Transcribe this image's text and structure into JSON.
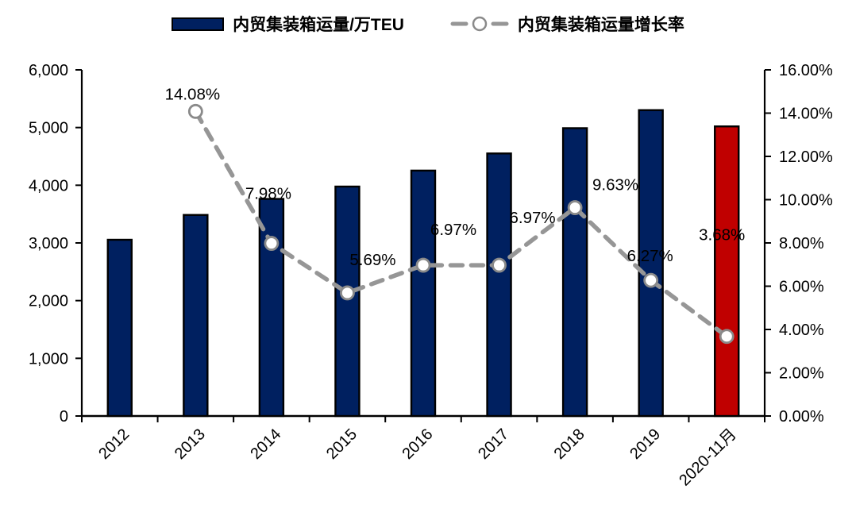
{
  "legend": {
    "bar_label": "内贸集装箱运量/万TEU",
    "line_label": "内贸集装箱运量增长率"
  },
  "colors": {
    "bar": "#002060",
    "bar_highlight": "#C00000",
    "bar_border": "#000000",
    "line": "#969696",
    "marker_stroke": "#8A8A8A",
    "marker_fill": "#FFFFFF",
    "axis": "#000000",
    "text": "#000000"
  },
  "chart_data": {
    "type": "bar+line combo",
    "title": "",
    "categories": [
      "2012",
      "2013",
      "2014",
      "2015",
      "2016",
      "2017",
      "2018",
      "2019",
      "2020-11月"
    ],
    "series": [
      {
        "name": "内贸集装箱运量/万TEU",
        "type": "bar",
        "axis": "left",
        "values": [
          3055,
          3485,
          3763,
          3977,
          4254,
          4551,
          4989,
          5302,
          5020
        ],
        "highlight_index": 8
      },
      {
        "name": "内贸集装箱运量增长率",
        "type": "line",
        "axis": "right",
        "values": [
          null,
          14.08,
          7.98,
          5.69,
          6.97,
          6.97,
          9.63,
          6.27,
          3.68
        ],
        "point_labels": [
          null,
          "14.08%",
          "7.98%",
          "5.69%",
          "6.97%",
          "6.97%",
          "9.63%",
          "6.27%",
          "3.68%"
        ],
        "label_offsets": [
          null,
          [
            -4,
            -22
          ],
          [
            -4,
            -63
          ],
          [
            32,
            -42
          ],
          [
            38,
            -45
          ],
          [
            42,
            -60
          ],
          [
            51,
            -29
          ],
          [
            -1,
            -31
          ],
          [
            -6,
            -128
          ]
        ]
      }
    ],
    "left_axis": {
      "min": 0,
      "max": 6000,
      "step": 1000,
      "tick_labels": [
        "0",
        "1,000",
        "2,000",
        "3,000",
        "4,000",
        "5,000",
        "6,000"
      ]
    },
    "right_axis": {
      "min": 0,
      "max": 16,
      "step": 2,
      "tick_labels": [
        "0.00%",
        "2.00%",
        "4.00%",
        "6.00%",
        "8.00%",
        "10.00%",
        "12.00%",
        "14.00%",
        "16.00%"
      ]
    },
    "grid": false,
    "legend_position": "top",
    "x_label_rotation": -45
  }
}
